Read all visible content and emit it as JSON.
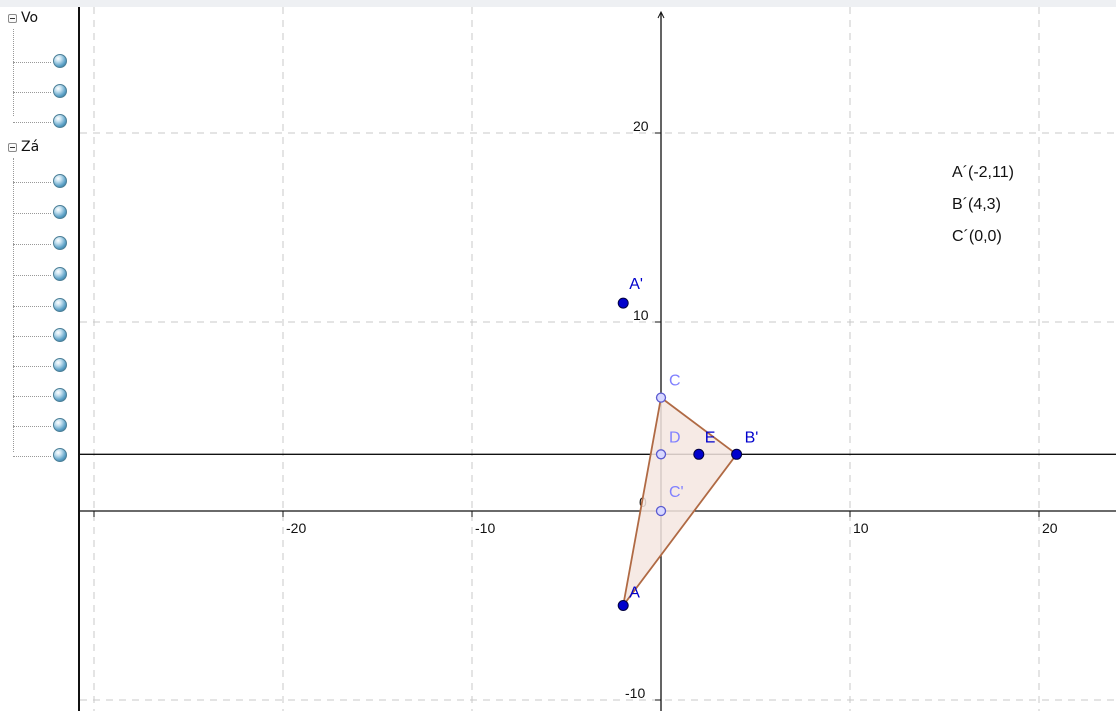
{
  "sidebar": {
    "groups": [
      {
        "label": "Vo",
        "item_count": 3
      },
      {
        "label": "Zá",
        "item_count": 10
      }
    ]
  },
  "graphics": {
    "x_axis": {
      "ticks": [
        -20,
        -10,
        0,
        10,
        20
      ]
    },
    "y_axis": {
      "ticks": [
        -10,
        0,
        10,
        20
      ]
    },
    "points": [
      {
        "name": "A'",
        "x": -2,
        "y": 11,
        "color": "#0000cc",
        "role": "free"
      },
      {
        "name": "A",
        "x": -2,
        "y": -5,
        "color": "#0000cc",
        "role": "free"
      },
      {
        "name": "B'",
        "x": 4,
        "y": 3,
        "color": "#0000cc",
        "role": "free"
      },
      {
        "name": "C",
        "x": 0,
        "y": 6,
        "color": "#8080ff",
        "role": "dependent"
      },
      {
        "name": "C'",
        "x": 0,
        "y": 0,
        "color": "#8080ff",
        "role": "dependent"
      },
      {
        "name": "D",
        "x": 0,
        "y": 3,
        "color": "#8080ff",
        "role": "dependent"
      },
      {
        "name": "E",
        "x": 2,
        "y": 3,
        "color": "#0000cc",
        "role": "free"
      }
    ],
    "polygon": {
      "vertices": [
        "A",
        "C",
        "B'"
      ],
      "fill": "#f5e6e0",
      "stroke": "#b06a44"
    },
    "horizontal_line_y": 3,
    "info_text": [
      "A´(-2,11)",
      "B´(4,3)",
      "C´(0,0)"
    ]
  }
}
